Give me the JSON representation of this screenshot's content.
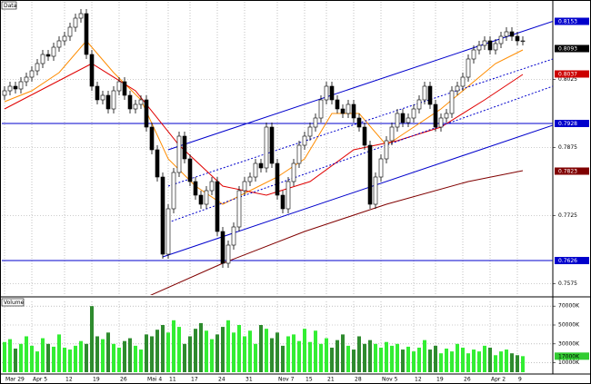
{
  "chart_data": [
    {
      "type": "candlestick",
      "title": "Data",
      "categories": [
        "Mar 29",
        null,
        null,
        null,
        null,
        "Apr 5",
        null,
        null,
        null,
        null,
        null,
        "12",
        null,
        null,
        null,
        null,
        "19",
        null,
        null,
        null,
        null,
        "26",
        null,
        null,
        null,
        null,
        "Mai 4",
        null,
        null,
        null,
        "11",
        null,
        null,
        null,
        "17",
        null,
        null,
        null,
        null,
        "24",
        null,
        null,
        null,
        null,
        "31",
        null,
        null,
        null,
        null,
        null,
        "Nov 7",
        null,
        null,
        null,
        null,
        "15",
        null,
        null,
        null,
        "21",
        null,
        null,
        null,
        null,
        "28",
        null,
        null,
        null,
        null,
        "Nov 5",
        null,
        null,
        null,
        null,
        null,
        "12",
        null,
        null,
        null,
        "19",
        null,
        null,
        null,
        null,
        "26",
        null,
        null,
        null,
        null,
        "Apr 2",
        null,
        null,
        null,
        null,
        "9",
        null
      ],
      "open": [
        0.799,
        0.8,
        0.801,
        0.8004,
        0.802,
        0.803,
        0.8044,
        0.806,
        0.808,
        0.8076,
        0.8096,
        0.811,
        0.812,
        0.814,
        0.816,
        0.817,
        0.808,
        0.801,
        0.798,
        0.799,
        0.796,
        0.8,
        0.802,
        0.799,
        0.796,
        0.797,
        0.798,
        0.792,
        0.787,
        0.781,
        0.764,
        0.774,
        0.782,
        0.79,
        0.785,
        0.78,
        0.777,
        0.775,
        0.778,
        0.78,
        0.769,
        0.762,
        0.766,
        0.77,
        0.778,
        0.78,
        0.781,
        0.784,
        0.783,
        0.792,
        0.784,
        0.777,
        0.774,
        0.78,
        0.784,
        0.788,
        0.79,
        0.792,
        0.794,
        0.798,
        0.801,
        0.798,
        0.796,
        0.795,
        0.797,
        0.794,
        0.792,
        0.788,
        0.775,
        0.781,
        0.785,
        0.789,
        0.792,
        0.795,
        0.793,
        0.794,
        0.796,
        0.798,
        0.801,
        0.797,
        0.792,
        0.794,
        0.795,
        0.8,
        0.801,
        0.803,
        0.807,
        0.809,
        0.81,
        0.811,
        0.809,
        0.8104,
        0.812,
        0.813,
        0.812,
        0.811
      ],
      "high": [
        0.801,
        0.802,
        0.802,
        0.803,
        0.804,
        0.8054,
        0.807,
        0.809,
        0.809,
        0.8106,
        0.812,
        0.813,
        0.815,
        0.817,
        0.818,
        0.818,
        0.809,
        0.802,
        0.8,
        0.8,
        0.801,
        0.803,
        0.803,
        0.8,
        0.798,
        0.799,
        0.799,
        0.793,
        0.788,
        0.782,
        0.775,
        0.783,
        0.791,
        0.791,
        0.786,
        0.781,
        0.778,
        0.779,
        0.781,
        0.781,
        0.77,
        0.767,
        0.771,
        0.779,
        0.781,
        0.782,
        0.785,
        0.785,
        0.793,
        0.793,
        0.785,
        0.778,
        0.781,
        0.785,
        0.789,
        0.791,
        0.793,
        0.795,
        0.799,
        0.802,
        0.802,
        0.799,
        0.797,
        0.798,
        0.798,
        0.795,
        0.793,
        0.789,
        0.782,
        0.786,
        0.79,
        0.793,
        0.796,
        0.796,
        0.795,
        0.797,
        0.799,
        0.802,
        0.802,
        0.798,
        0.795,
        0.796,
        0.801,
        0.802,
        0.804,
        0.808,
        0.81,
        0.811,
        0.812,
        0.812,
        0.8114,
        0.813,
        0.814,
        0.814,
        0.813,
        0.812
      ],
      "low": [
        0.798,
        0.799,
        0.7994,
        0.7994,
        0.801,
        0.802,
        0.8034,
        0.805,
        0.8066,
        0.8066,
        0.8086,
        0.81,
        0.811,
        0.813,
        0.815,
        0.807,
        0.8,
        0.797,
        0.797,
        0.795,
        0.795,
        0.799,
        0.798,
        0.795,
        0.795,
        0.796,
        0.791,
        0.786,
        0.78,
        0.763,
        0.763,
        0.773,
        0.781,
        0.784,
        0.779,
        0.776,
        0.774,
        0.774,
        0.777,
        0.768,
        0.761,
        0.761,
        0.765,
        0.769,
        0.777,
        0.779,
        0.78,
        0.782,
        0.782,
        0.783,
        0.776,
        0.773,
        0.773,
        0.779,
        0.783,
        0.787,
        0.789,
        0.791,
        0.793,
        0.797,
        0.797,
        0.795,
        0.794,
        0.794,
        0.793,
        0.791,
        0.787,
        0.774,
        0.774,
        0.78,
        0.784,
        0.788,
        0.791,
        0.792,
        0.792,
        0.793,
        0.795,
        0.797,
        0.796,
        0.791,
        0.791,
        0.793,
        0.794,
        0.799,
        0.8,
        0.802,
        0.806,
        0.808,
        0.809,
        0.808,
        0.808,
        0.8094,
        0.811,
        0.811,
        0.81,
        0.81
      ],
      "close": [
        0.8,
        0.801,
        0.8004,
        0.802,
        0.803,
        0.8044,
        0.806,
        0.808,
        0.8076,
        0.8096,
        0.811,
        0.812,
        0.814,
        0.816,
        0.817,
        0.808,
        0.801,
        0.798,
        0.799,
        0.796,
        0.8,
        0.802,
        0.799,
        0.796,
        0.797,
        0.798,
        0.792,
        0.787,
        0.781,
        0.764,
        0.774,
        0.782,
        0.79,
        0.785,
        0.78,
        0.777,
        0.775,
        0.778,
        0.78,
        0.769,
        0.762,
        0.766,
        0.77,
        0.778,
        0.78,
        0.781,
        0.784,
        0.783,
        0.792,
        0.784,
        0.777,
        0.774,
        0.78,
        0.784,
        0.788,
        0.79,
        0.792,
        0.794,
        0.798,
        0.801,
        0.798,
        0.796,
        0.795,
        0.797,
        0.794,
        0.792,
        0.788,
        0.775,
        0.781,
        0.785,
        0.789,
        0.792,
        0.795,
        0.793,
        0.794,
        0.796,
        0.798,
        0.801,
        0.797,
        0.792,
        0.794,
        0.795,
        0.8,
        0.801,
        0.803,
        0.807,
        0.809,
        0.81,
        0.811,
        0.809,
        0.8104,
        0.812,
        0.813,
        0.812,
        0.811,
        0.811
      ],
      "xlim": [
        -0.5,
        100.5
      ],
      "ylim": [
        0.755,
        0.8196
      ],
      "yticks": [
        0.7575,
        0.7725,
        0.7875,
        0.8025
      ],
      "grid": true,
      "up_color": "#ffffff",
      "down_color": "#000000",
      "overlays": [
        {
          "color": "#ff8c00",
          "x": [
            0,
            5,
            10,
            15,
            20,
            25,
            30,
            35,
            40,
            45,
            50,
            55,
            60,
            65,
            70,
            75,
            80,
            85,
            90,
            95
          ],
          "values": [
            0.7976,
            0.8,
            0.804,
            0.811,
            0.804,
            0.798,
            0.785,
            0.779,
            0.775,
            0.778,
            0.781,
            0.785,
            0.795,
            0.795,
            0.788,
            0.792,
            0.796,
            0.801,
            0.806,
            0.809
          ]
        },
        {
          "color": "#e00000",
          "x": [
            0,
            8,
            16,
            24,
            32,
            40,
            48,
            56,
            64,
            72,
            80,
            88,
            95
          ],
          "values": [
            0.796,
            0.801,
            0.806,
            0.8,
            0.788,
            0.779,
            0.777,
            0.78,
            0.787,
            0.789,
            0.792,
            0.798,
            0.8036
          ]
        },
        {
          "color": "#800000",
          "x": [
            25,
            40,
            55,
            70,
            85,
            95
          ],
          "values": [
            0.754,
            0.762,
            0.769,
            0.775,
            0.78,
            0.7824
          ]
        },
        {
          "color": "#0000cc",
          "x": [
            30,
            100.5
          ],
          "values": [
            0.787,
            0.8153
          ]
        },
        {
          "color": "#0000cc",
          "x": [
            29,
            100.5
          ],
          "values": [
            0.7634,
            0.7924
          ]
        },
        {
          "color": "#0000cc",
          "dash": true,
          "x": [
            30,
            100.5
          ],
          "values": [
            0.779,
            0.807
          ]
        },
        {
          "color": "#0000cc",
          "dash": true,
          "x": [
            30,
            100.5
          ],
          "values": [
            0.771,
            0.801
          ]
        }
      ],
      "markers": [
        {
          "value": 0.8153,
          "color": "#0000cc"
        },
        {
          "value": 0.8093,
          "color": "#000000"
        },
        {
          "value": 0.8037,
          "color": "#cc0000"
        },
        {
          "value": 0.7928,
          "color": "#0000cc",
          "line": true
        },
        {
          "value": 0.7823,
          "color": "#800000"
        },
        {
          "value": 0.7626,
          "color": "#0000cc",
          "line": true
        }
      ]
    },
    {
      "type": "bar",
      "title": "Volume",
      "values": [
        32000,
        35000,
        25000,
        30000,
        38000,
        28000,
        22000,
        36000,
        30000,
        27000,
        40000,
        26000,
        24000,
        28000,
        33000,
        30000,
        70000,
        38000,
        35000,
        42000,
        30000,
        26000,
        33000,
        36000,
        28000,
        24000,
        40000,
        38000,
        45000,
        50000,
        42000,
        55000,
        48000,
        30000,
        38000,
        46000,
        52000,
        44000,
        35000,
        40000,
        48000,
        55000,
        42000,
        50000,
        38000,
        44000,
        30000,
        50000,
        46000,
        36000,
        42000,
        28000,
        38000,
        40000,
        33000,
        46000,
        32000,
        44000,
        30000,
        36000,
        26000,
        34000,
        40000,
        28000,
        24000,
        38000,
        30000,
        34000,
        30000,
        26000,
        32000,
        28000,
        30000,
        24000,
        27000,
        22000,
        26000,
        34000,
        24000,
        28000,
        20000,
        25000,
        22000,
        30000,
        26000,
        20000,
        24000,
        22000,
        28000,
        26000,
        18000,
        22000,
        24000,
        20000,
        18000,
        17000
      ],
      "ylim": [
        0,
        75000
      ],
      "yticks": [
        {
          "value": 10000,
          "label": "10000K"
        },
        {
          "value": 30000,
          "label": "30000K"
        },
        {
          "value": 50000,
          "label": "50000K"
        },
        {
          "value": 70000,
          "label": "70000K"
        }
      ],
      "grid": true,
      "up_color": "#33ee33",
      "down_color": "#2e8b2e",
      "marker": {
        "value": 17000,
        "label": "17000K",
        "color": "#33cc33"
      }
    }
  ]
}
